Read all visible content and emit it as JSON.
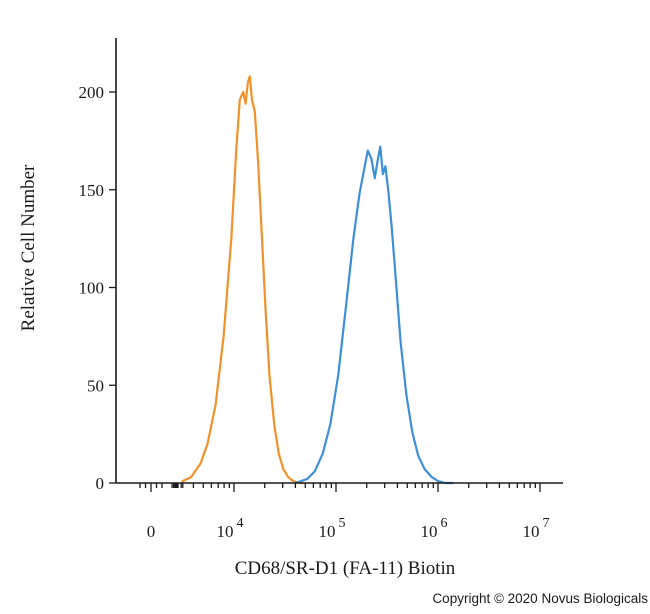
{
  "chart_data": {
    "type": "area",
    "xlabel": "CD68/SR-D1 (FA-11) Biotin",
    "ylabel": "Relative Cell Number",
    "x_scale": "biexponential",
    "x_ticks": [
      {
        "value": 0,
        "base": "0",
        "exp": ""
      },
      {
        "value": 10000,
        "base": "10",
        "exp": "4"
      },
      {
        "value": 100000,
        "base": "10",
        "exp": "5"
      },
      {
        "value": 1000000,
        "base": "10",
        "exp": "6"
      },
      {
        "value": 10000000,
        "base": "10",
        "exp": "7"
      }
    ],
    "ylim": [
      0,
      220
    ],
    "y_ticks": [
      0,
      50,
      100,
      150,
      200
    ],
    "grid": false,
    "series": [
      {
        "color": "#f0922b",
        "x": [
          2500,
          3000,
          3800,
          4700,
          5500,
          6600,
          7900,
          9400,
          10500,
          11400,
          12300,
          13000,
          13700,
          14300,
          15000,
          16000,
          17200,
          18600,
          20300,
          22300,
          24800,
          27500,
          30500,
          34000,
          38000,
          43000,
          48000
        ],
        "y": [
          0,
          1,
          3,
          10,
          20,
          40,
          75,
          125,
          170,
          196,
          200,
          194,
          205,
          208,
          196,
          190,
          165,
          130,
          90,
          55,
          30,
          15,
          7,
          3,
          1,
          0,
          0
        ]
      },
      {
        "color": "#3d8fd6",
        "x": [
          40000,
          52000,
          62000,
          74000,
          88000,
          105000,
          125000,
          148000,
          170000,
          188000,
          205000,
          222000,
          240000,
          258000,
          272000,
          288000,
          305000,
          325000,
          350000,
          385000,
          430000,
          490000,
          560000,
          640000,
          740000,
          870000,
          1000000,
          1180000,
          1400000
        ],
        "y": [
          0,
          2,
          6,
          15,
          30,
          55,
          90,
          125,
          148,
          160,
          170,
          166,
          156,
          166,
          172,
          158,
          162,
          150,
          132,
          105,
          72,
          45,
          26,
          14,
          7,
          3,
          1,
          0,
          0
        ]
      }
    ]
  },
  "copyright": "Copyright © 2020 Novus Biologicals"
}
